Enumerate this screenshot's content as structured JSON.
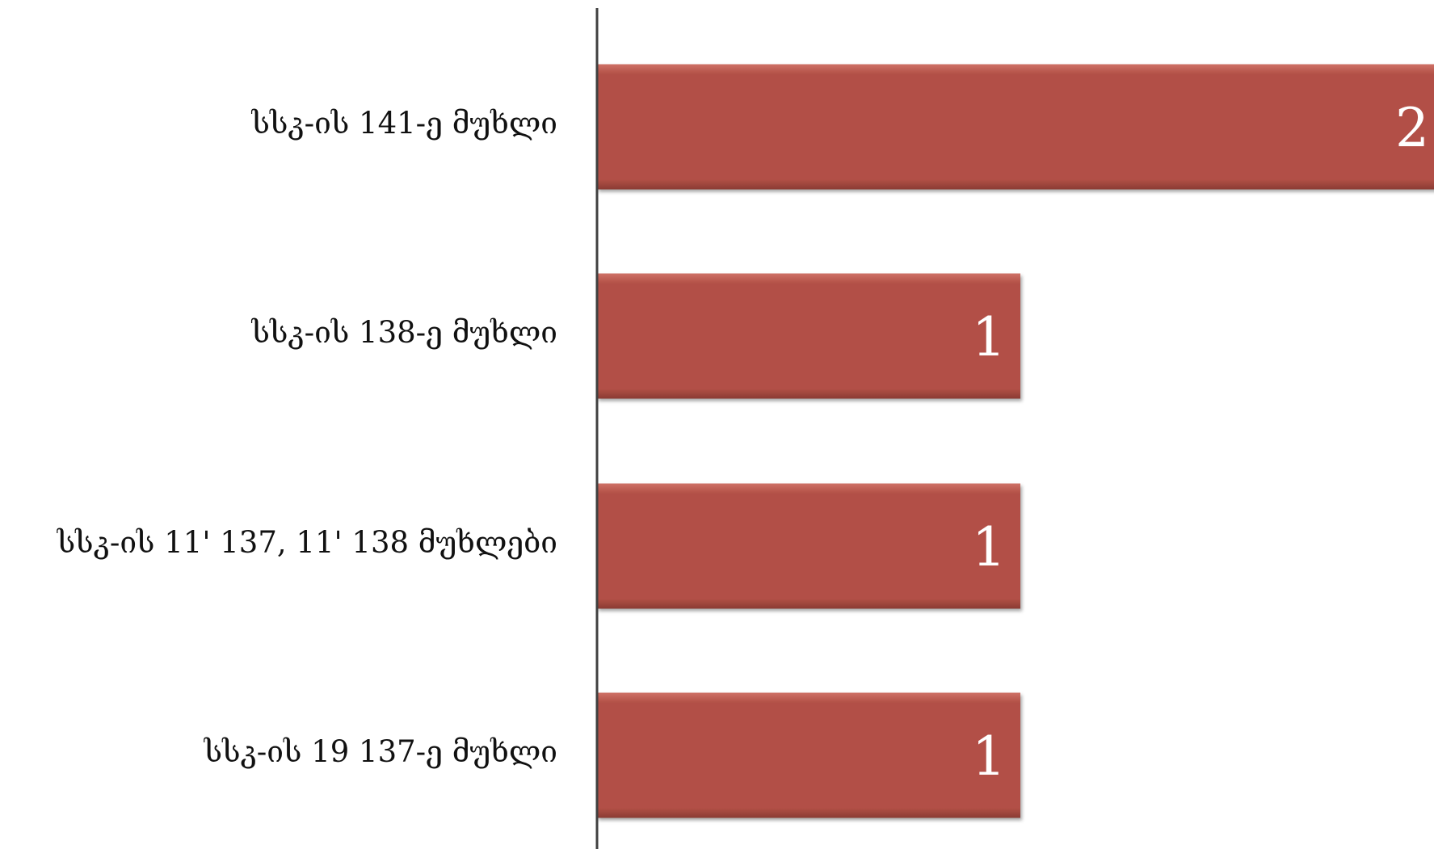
{
  "colors": {
    "bar_fill": "#b25046",
    "bar_highlight": "#cf7167",
    "bar_shadow": "#8a3b33",
    "axis": "#404040",
    "label_text": "#111111",
    "value_text": "#ffffff"
  },
  "chart_data": {
    "type": "bar",
    "orientation": "horizontal",
    "categories": [
      "სსკ-ის 141-ე მუხლი",
      "სსკ-ის 138-ე მუხლი",
      "სსკ-ის 11' 137, 11' 138 მუხლები",
      "სსკ-ის 19 137-ე მუხლი"
    ],
    "values": [
      2,
      1,
      1,
      1
    ],
    "data_labels": [
      "2",
      "1",
      "1",
      "1"
    ],
    "title": "",
    "xlabel": "",
    "ylabel": "",
    "xlim": [
      0,
      2
    ],
    "grid": false,
    "legend": "none"
  }
}
